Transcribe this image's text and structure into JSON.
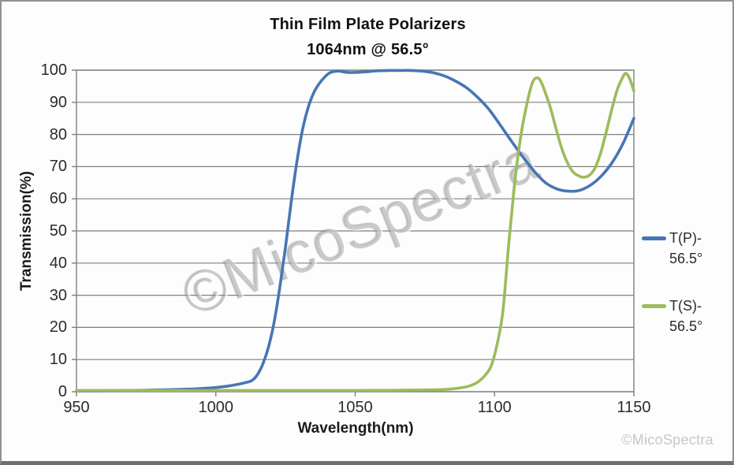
{
  "window": {
    "background": "#fdfdfd",
    "frame_color": "#919191"
  },
  "watermark": {
    "diagonal": "©MicoSpectra",
    "corner": "©MicoSpectra"
  },
  "chart_data": {
    "type": "line",
    "title": "Thin Film Plate Polarizers",
    "subtitle": "1064nm @ 56.5°",
    "xlabel": "Wavelength(nm)",
    "ylabel": "Transmission(%)",
    "xlim": [
      950,
      1150
    ],
    "ylim": [
      0,
      100
    ],
    "x_ticks": [
      950,
      1000,
      1050,
      1100,
      1150
    ],
    "y_ticks": [
      0,
      10,
      20,
      30,
      40,
      50,
      60,
      70,
      80,
      90,
      100
    ],
    "grid": "horizontal",
    "grid_color": "#7f7f7f",
    "legend_position": "right",
    "series": [
      {
        "name": "T(P)-56.5°",
        "legend_lines": [
          "T(P)-",
          "56.5°"
        ],
        "color": "#4776B4",
        "points": [
          [
            950,
            0.3
          ],
          [
            958,
            0.3
          ],
          [
            966,
            0.35
          ],
          [
            974,
            0.45
          ],
          [
            982,
            0.6
          ],
          [
            988,
            0.75
          ],
          [
            994,
            0.95
          ],
          [
            1000,
            1.3
          ],
          [
            1004,
            1.7
          ],
          [
            1008,
            2.3
          ],
          [
            1011,
            2.9
          ],
          [
            1013,
            3.5
          ],
          [
            1015,
            5.4
          ],
          [
            1017,
            8.9
          ],
          [
            1019,
            14.2
          ],
          [
            1021,
            22
          ],
          [
            1023,
            32.7
          ],
          [
            1025,
            45
          ],
          [
            1027,
            58.7
          ],
          [
            1029,
            71
          ],
          [
            1031,
            81
          ],
          [
            1033,
            88
          ],
          [
            1035,
            92.7
          ],
          [
            1037,
            95.7
          ],
          [
            1039,
            97.8
          ],
          [
            1041,
            99.2
          ],
          [
            1044,
            99.7
          ],
          [
            1047,
            99.3
          ],
          [
            1050,
            99.3
          ],
          [
            1054,
            99.5
          ],
          [
            1058,
            99.8
          ],
          [
            1062,
            99.9
          ],
          [
            1066,
            99.9
          ],
          [
            1070,
            99.9
          ],
          [
            1074,
            99.7
          ],
          [
            1078,
            99.2
          ],
          [
            1082,
            98.2
          ],
          [
            1086,
            96.6
          ],
          [
            1090,
            94.5
          ],
          [
            1094,
            91.5
          ],
          [
            1098,
            87.8
          ],
          [
            1102,
            83
          ],
          [
            1106,
            78
          ],
          [
            1110,
            73.2
          ],
          [
            1114,
            68.8
          ],
          [
            1118,
            65.2
          ],
          [
            1122,
            63.2
          ],
          [
            1126,
            62.4
          ],
          [
            1130,
            62.5
          ],
          [
            1134,
            64
          ],
          [
            1138,
            66.8
          ],
          [
            1142,
            71
          ],
          [
            1146,
            77
          ],
          [
            1150,
            85
          ]
        ]
      },
      {
        "name": "T(S)-56.5°",
        "legend_lines": [
          "T(S)-",
          "56.5°"
        ],
        "color": "#9CBB5B",
        "points": [
          [
            950,
            0.4
          ],
          [
            970,
            0.4
          ],
          [
            990,
            0.4
          ],
          [
            1010,
            0.4
          ],
          [
            1030,
            0.4
          ],
          [
            1050,
            0.4
          ],
          [
            1065,
            0.45
          ],
          [
            1075,
            0.55
          ],
          [
            1082,
            0.7
          ],
          [
            1087,
            1.1
          ],
          [
            1091,
            1.8
          ],
          [
            1094,
            3
          ],
          [
            1097,
            5.5
          ],
          [
            1099,
            8.5
          ],
          [
            1101,
            15
          ],
          [
            1103,
            25
          ],
          [
            1105,
            45
          ],
          [
            1106,
            54
          ],
          [
            1107,
            63
          ],
          [
            1108,
            70.5
          ],
          [
            1109,
            77
          ],
          [
            1110,
            82.5
          ],
          [
            1111,
            87
          ],
          [
            1112,
            91
          ],
          [
            1113,
            94.5
          ],
          [
            1114,
            96.8
          ],
          [
            1115,
            97.6
          ],
          [
            1116,
            97.3
          ],
          [
            1117,
            95.8
          ],
          [
            1118,
            93.5
          ],
          [
            1120,
            88.5
          ],
          [
            1122,
            82
          ],
          [
            1124,
            76
          ],
          [
            1126,
            71.5
          ],
          [
            1128,
            68.5
          ],
          [
            1130,
            67.2
          ],
          [
            1132,
            66.7
          ],
          [
            1134,
            67.3
          ],
          [
            1136,
            69.5
          ],
          [
            1138,
            74
          ],
          [
            1140,
            80.5
          ],
          [
            1142,
            87.5
          ],
          [
            1144,
            93.8
          ],
          [
            1146,
            97.8
          ],
          [
            1147,
            99
          ],
          [
            1148,
            98.2
          ],
          [
            1149,
            96.2
          ],
          [
            1150,
            93.5
          ]
        ]
      }
    ]
  }
}
